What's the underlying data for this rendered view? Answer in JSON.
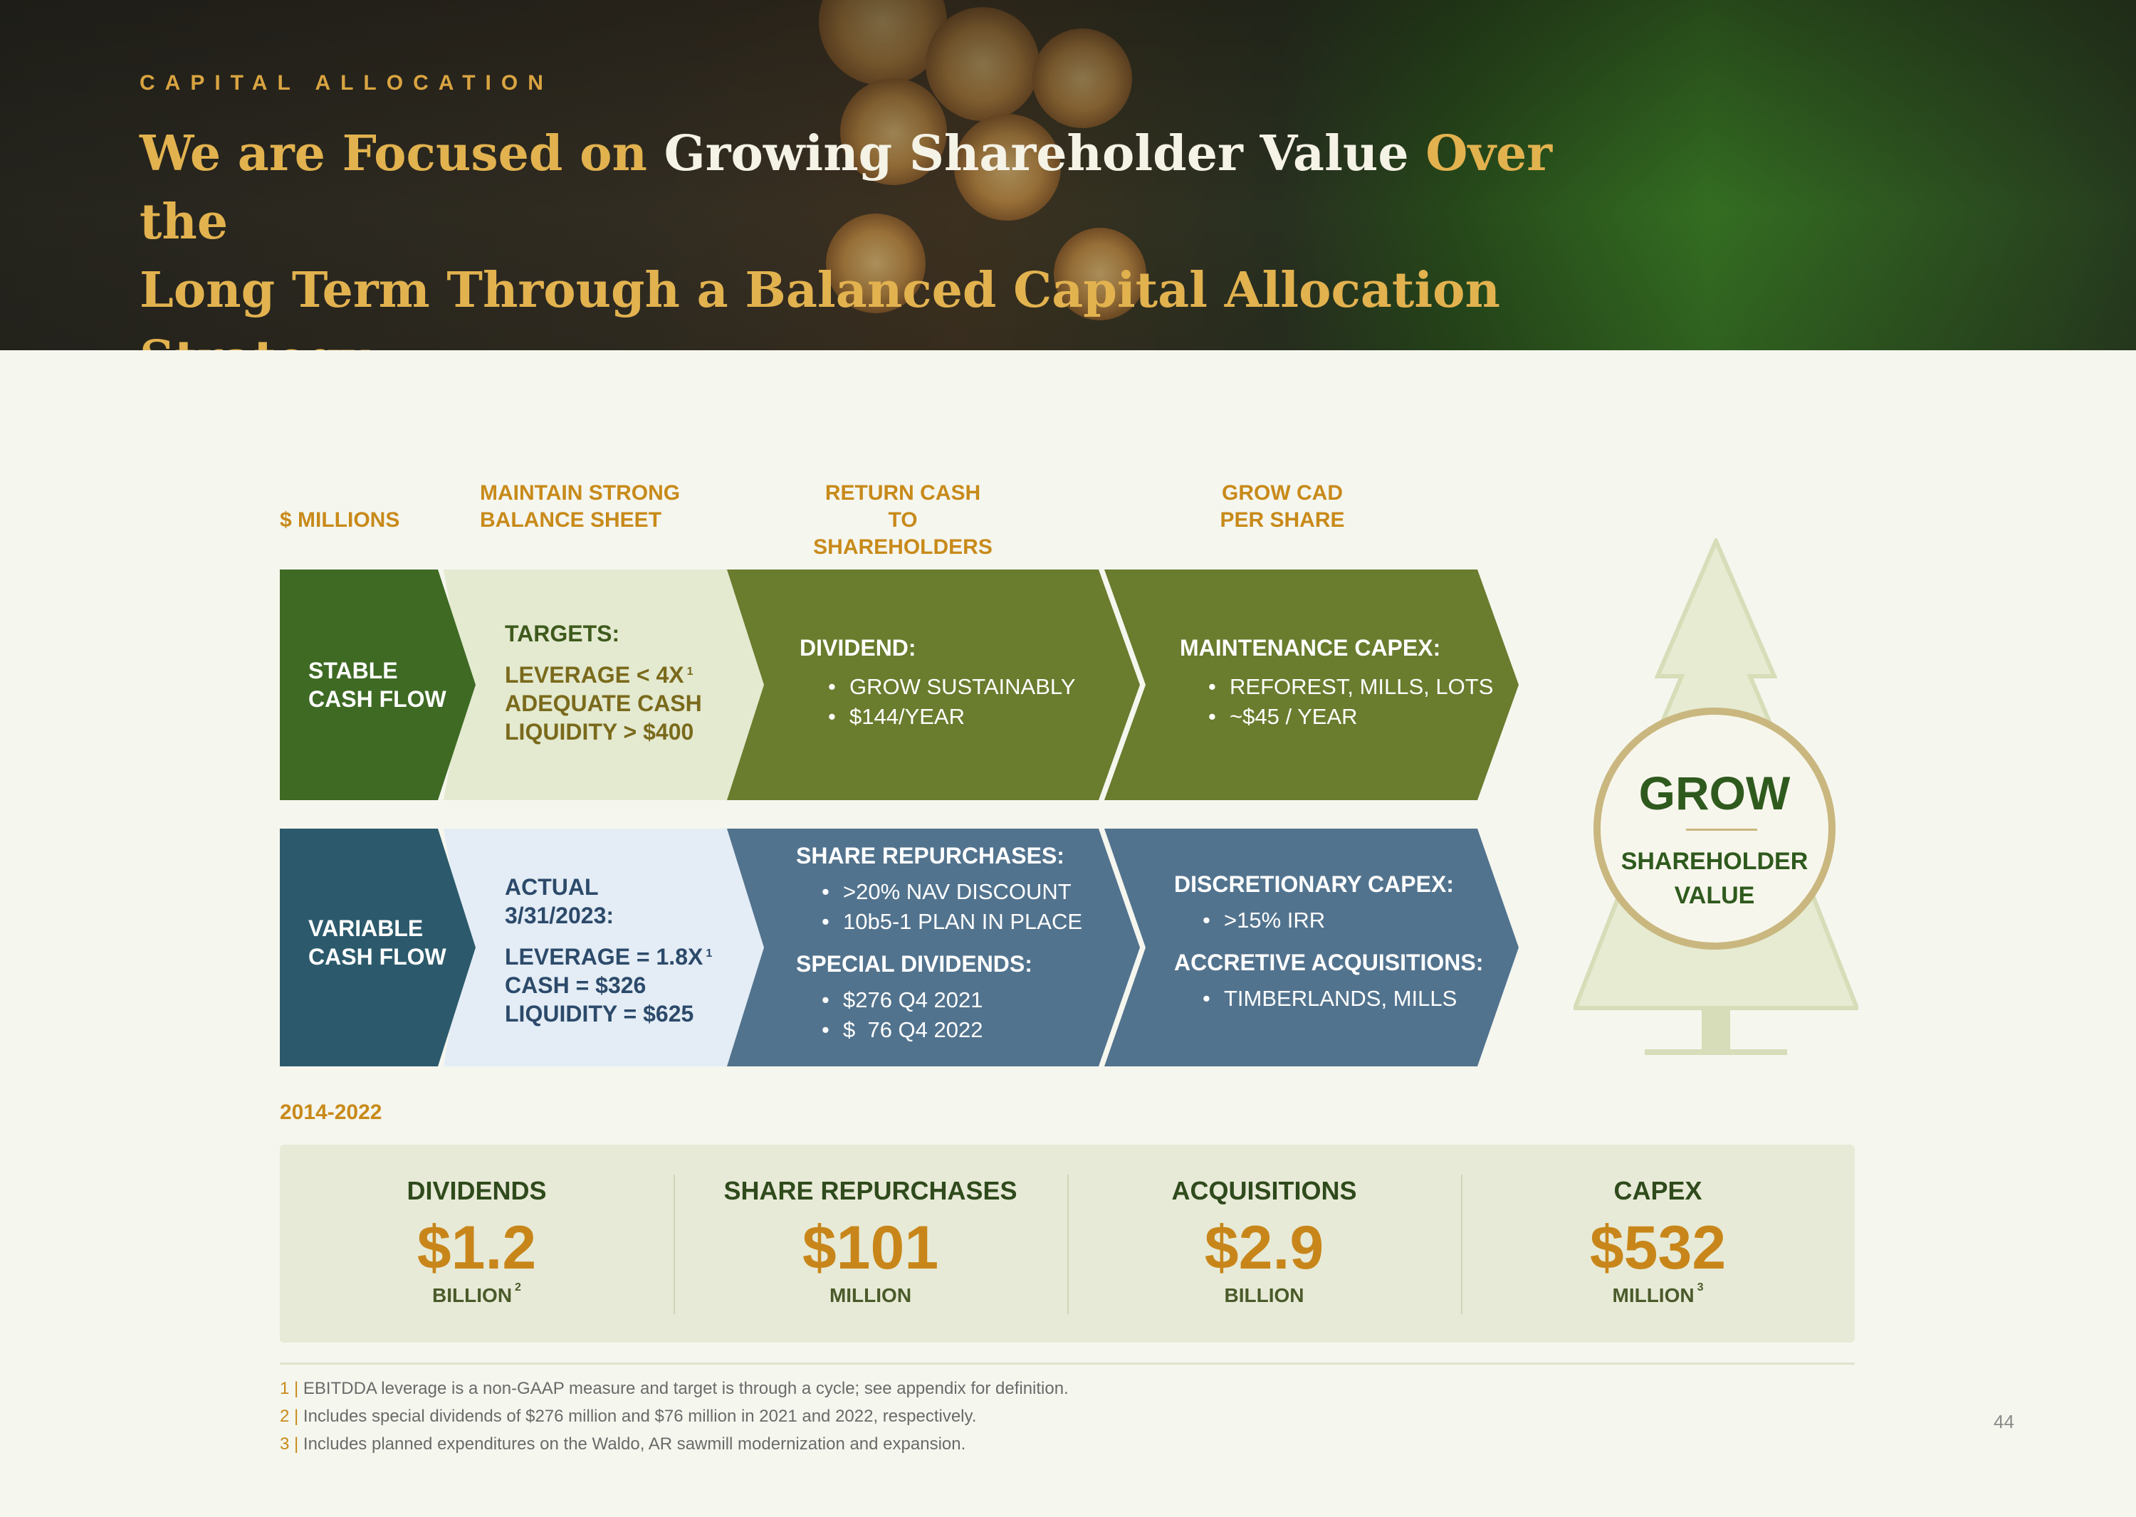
{
  "header": {
    "eyebrow": "CAPITAL ALLOCATION",
    "title_parts": [
      "We are Focused on ",
      "Growing Shareholder Value",
      " Over the",
      "Long Term Through a Balanced Capital Allocation Strategy"
    ]
  },
  "columns": {
    "units": "$ MILLIONS",
    "c1": [
      "MAINTAIN STRONG",
      "BALANCE SHEET"
    ],
    "c2": [
      "RETURN CASH TO",
      "SHAREHOLDERS"
    ],
    "c3": [
      "GROW CAD",
      "PER SHARE"
    ]
  },
  "stable": {
    "label": [
      "STABLE",
      "CASH FLOW"
    ],
    "targets_title": "TARGETS:",
    "targets": [
      "LEVERAGE < 4X",
      "ADEQUATE CASH",
      "LIQUIDITY > $400"
    ],
    "targets_note": "1",
    "dividend_title": "DIVIDEND:",
    "dividend": [
      "GROW SUSTAINABLY",
      "$144/YEAR"
    ],
    "maint_title": "MAINTENANCE CAPEX:",
    "maint": [
      "REFOREST, MILLS, LOTS",
      "~$45 / YEAR"
    ]
  },
  "variable": {
    "label": [
      "VARIABLE",
      "CASH FLOW"
    ],
    "actual_title": [
      "ACTUAL",
      "3/31/2023:"
    ],
    "actual": [
      "LEVERAGE = 1.8X",
      "CASH = $326",
      "LIQUIDITY = $625"
    ],
    "actual_note": "1",
    "repurch_title": "SHARE REPURCHASES:",
    "repurch": [
      ">20% NAV DISCOUNT",
      "10b5-1 PLAN IN PLACE"
    ],
    "special_title": "SPECIAL DIVIDENDS:",
    "special": [
      "$276 Q4 2021",
      "$  76 Q4 2022"
    ],
    "disc_title": "DISCRETIONARY CAPEX:",
    "disc": [
      ">15% IRR"
    ],
    "accr_title": "ACCRETIVE ACQUISITIONS:",
    "accr": [
      "TIMBERLANDS, MILLS"
    ]
  },
  "grow": {
    "title": "GROW",
    "sub": [
      "SHAREHOLDER",
      "VALUE"
    ]
  },
  "period": "2014-2022",
  "stats": [
    {
      "title": "DIVIDENDS",
      "value": "$1.2",
      "unit": "BILLION",
      "note": "2"
    },
    {
      "title": "SHARE REPURCHASES",
      "value": "$101",
      "unit": "MILLION",
      "note": ""
    },
    {
      "title": "ACQUISITIONS",
      "value": "$2.9",
      "unit": "BILLION",
      "note": ""
    },
    {
      "title": "CAPEX",
      "value": "$532",
      "unit": "MILLION",
      "note": "3"
    }
  ],
  "footnotes": [
    {
      "n": "1 |",
      "text": " EBITDDA leverage is a non-GAAP measure and target is through a cycle; see appendix for definition."
    },
    {
      "n": "2 |",
      "text": " Includes special dividends of $276 million and $76 million in 2021 and 2022, respectively."
    },
    {
      "n": "3 |",
      "text": " Includes planned expenditures on the Waldo, AR sawmill modernization and expansion."
    }
  ],
  "page_number": "44",
  "colors": {
    "dark_green": "#3e6a24",
    "olive": "#6a7c2e",
    "pale_green": "#e4ead0",
    "teal": "#2c5a6c",
    "slate": "#52738e",
    "pale_blue": "#e4edf6",
    "gold": "#c88a1a"
  }
}
